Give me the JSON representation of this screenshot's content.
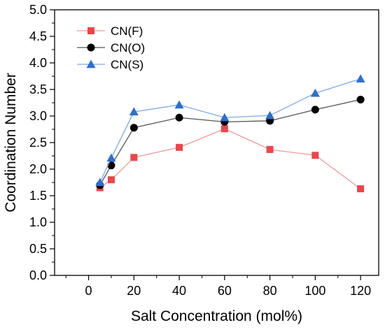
{
  "chart_data": {
    "type": "line",
    "title": "",
    "xlabel": "Salt Concentration (mol%)",
    "ylabel": "Coordination Number",
    "xlim": [
      -15,
      128
    ],
    "ylim": [
      0,
      5
    ],
    "x_ticks": [
      0,
      20,
      40,
      60,
      80,
      100,
      120
    ],
    "x_tick_labels": [
      "0",
      "20",
      "40",
      "60",
      "80",
      "100",
      "120"
    ],
    "y_ticks": [
      0.0,
      0.5,
      1.0,
      1.5,
      2.0,
      2.5,
      3.0,
      3.5,
      4.0,
      4.5,
      5.0
    ],
    "y_tick_labels": [
      "0.0",
      "0.5",
      "1.0",
      "1.5",
      "2.0",
      "2.5",
      "3.0",
      "3.5",
      "4.0",
      "4.5",
      "5.0"
    ],
    "grid": false,
    "legend_position": "top-left",
    "x": [
      5,
      10,
      20,
      40,
      60,
      80,
      100,
      120
    ],
    "series": [
      {
        "name": "CN(F)",
        "values": [
          1.65,
          1.8,
          2.22,
          2.41,
          2.76,
          2.37,
          2.26,
          1.63
        ],
        "marker": "square",
        "color": "#e8474c",
        "line_color": "#f19a9c"
      },
      {
        "name": "CN(O)",
        "values": [
          1.7,
          2.07,
          2.78,
          2.97,
          2.89,
          2.91,
          3.12,
          3.31
        ],
        "marker": "circle",
        "color": "#000000",
        "line_color": "#555555"
      },
      {
        "name": "CN(S)",
        "values": [
          1.75,
          2.21,
          3.08,
          3.21,
          2.97,
          3.01,
          3.43,
          3.7
        ],
        "marker": "triangle",
        "color": "#2f6fcb",
        "line_color": "#7fa8e3"
      }
    ]
  }
}
